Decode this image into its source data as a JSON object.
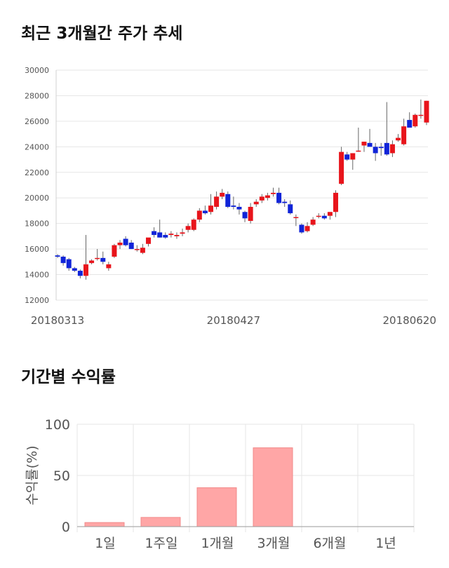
{
  "sections": {
    "price_title": "최근 3개월간 주가 추세",
    "return_title": "기간별 수익률"
  },
  "colors": {
    "up": "#e8141b",
    "down": "#1024d8",
    "bar": "#ffa6a6",
    "grid": "#e6e6e6"
  },
  "chart_data": [
    {
      "type": "candlestick",
      "title": "최근 3개월간 주가 추세",
      "ylim": [
        12000,
        30000
      ],
      "yticks": [
        12000,
        14000,
        16000,
        18000,
        20000,
        22000,
        24000,
        26000,
        28000,
        30000
      ],
      "xtick_labels": [
        {
          "index": 0,
          "label": "20180313"
        },
        {
          "index": 31,
          "label": "20180427"
        },
        {
          "index": 62,
          "label": "20180620"
        }
      ],
      "series": [
        [
          15500,
          15600,
          15300,
          15400
        ],
        [
          15400,
          15500,
          14700,
          14900
        ],
        [
          15200,
          15300,
          14300,
          14500
        ],
        [
          14500,
          14600,
          14200,
          14300
        ],
        [
          14300,
          14400,
          13700,
          13900
        ],
        [
          13900,
          17100,
          13600,
          14800
        ],
        [
          14900,
          15200,
          14800,
          15100
        ],
        [
          15300,
          16000,
          15100,
          15300
        ],
        [
          15300,
          15800,
          14800,
          15000
        ],
        [
          14500,
          15000,
          14300,
          14800
        ],
        [
          15400,
          16400,
          15300,
          16300
        ],
        [
          16300,
          16700,
          16000,
          16500
        ],
        [
          16800,
          17000,
          16200,
          16300
        ],
        [
          16500,
          16700,
          16000,
          16000
        ],
        [
          16000,
          16300,
          15800,
          16000
        ],
        [
          15700,
          16400,
          15600,
          16100
        ],
        [
          16400,
          16500,
          16200,
          16900
        ],
        [
          17400,
          17700,
          16900,
          17100
        ],
        [
          17300,
          18300,
          16900,
          16900
        ],
        [
          17100,
          17300,
          16800,
          16900
        ],
        [
          17100,
          17400,
          16900,
          17200
        ],
        [
          17000,
          17300,
          16800,
          17100
        ],
        [
          17200,
          17600,
          17000,
          17300
        ],
        [
          17500,
          18000,
          17300,
          17800
        ],
        [
          17500,
          18400,
          17400,
          18300
        ],
        [
          18300,
          19200,
          18100,
          19000
        ],
        [
          19000,
          19400,
          18700,
          18800
        ],
        [
          18900,
          20300,
          18700,
          19400
        ],
        [
          19300,
          20500,
          19100,
          20100
        ],
        [
          20100,
          20700,
          19900,
          20400
        ],
        [
          20300,
          20500,
          19200,
          19300
        ],
        [
          19400,
          20100,
          19100,
          19300
        ],
        [
          19300,
          19600,
          18700,
          19100
        ],
        [
          18900,
          19000,
          18100,
          18400
        ],
        [
          18200,
          19600,
          18000,
          19300
        ],
        [
          19500,
          19900,
          19300,
          19700
        ],
        [
          19800,
          20300,
          19600,
          20100
        ],
        [
          20000,
          20400,
          19800,
          20200
        ],
        [
          20300,
          20800,
          20100,
          20400
        ],
        [
          20400,
          20800,
          19500,
          19600
        ],
        [
          19700,
          19900,
          19300,
          19600
        ],
        [
          19500,
          19800,
          18700,
          18800
        ],
        [
          18500,
          18700,
          17800,
          18500
        ],
        [
          17900,
          18000,
          17200,
          17300
        ],
        [
          17400,
          18100,
          17300,
          17800
        ],
        [
          17900,
          18500,
          17800,
          18300
        ],
        [
          18600,
          18800,
          18400,
          18600
        ],
        [
          18600,
          18800,
          18300,
          18400
        ],
        [
          18600,
          18900,
          18300,
          18900
        ],
        [
          18900,
          20600,
          18500,
          20400
        ],
        [
          21100,
          24000,
          21000,
          23600
        ],
        [
          23400,
          23600,
          22900,
          23000
        ],
        [
          23000,
          23500,
          22200,
          23500
        ],
        [
          23700,
          25500,
          23600,
          23700
        ],
        [
          24100,
          24400,
          23600,
          24400
        ],
        [
          24300,
          25400,
          24100,
          24000
        ],
        [
          24000,
          24300,
          22900,
          23500
        ],
        [
          24000,
          24300,
          23300,
          23900
        ],
        [
          24300,
          27500,
          23300,
          23400
        ],
        [
          23500,
          24500,
          23200,
          24200
        ],
        [
          24500,
          25000,
          24400,
          24700
        ],
        [
          24200,
          26200,
          24100,
          25600
        ],
        [
          26100,
          26700,
          25500,
          25500
        ],
        [
          25600,
          26600,
          25500,
          26500
        ],
        [
          26500,
          27700,
          26200,
          26500
        ],
        [
          25900,
          27600,
          25700,
          27600
        ]
      ]
    },
    {
      "type": "bar",
      "title": "기간별 수익률",
      "ylabel": "수익률(%)",
      "ylim": [
        0,
        100
      ],
      "yticks": [
        0,
        50,
        100
      ],
      "categories": [
        "1일",
        "1주일",
        "1개월",
        "3개월",
        "6개월",
        "1년"
      ],
      "values": [
        4,
        9,
        38,
        77,
        null,
        null
      ]
    }
  ]
}
